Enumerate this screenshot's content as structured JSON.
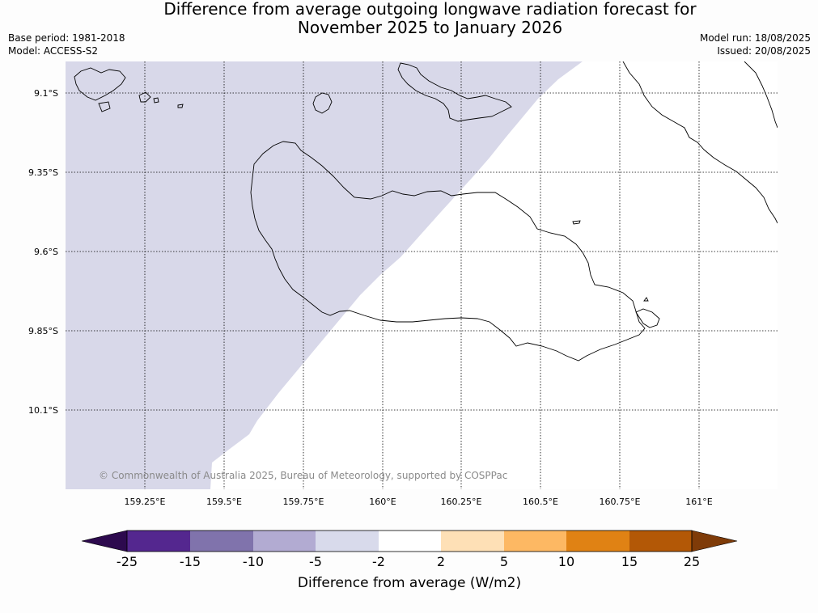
{
  "title": "Difference from average outgoing longwave radiation forecast for\nNovember 2025 to January 2026",
  "meta": {
    "base_period": "Base period: 1981-2018",
    "model": "Model: ACCESS-S2",
    "model_run": "Model run: 18/08/2025",
    "issued": "Issued: 20/08/2025"
  },
  "map": {
    "lat_ticks": [
      "9.1°S",
      "9.35°S",
      "9.6°S",
      "9.85°S",
      "10.1°S"
    ],
    "lon_ticks": [
      "159.25°E",
      "159.5°E",
      "159.75°E",
      "160°E",
      "160.25°E",
      "160.5°E",
      "160.75°E",
      "161°E"
    ],
    "credit": "© Commonwealth of Australia 2025, Bureau of Meteorology, supported by COSPPac",
    "anomaly_fill_color": "#d8d8e9",
    "anomaly_fill_value_range": "-5 to -2"
  },
  "colorbar": {
    "title": "Difference from average (W/m2)",
    "labels": [
      "-25",
      "-15",
      "-10",
      "-5",
      "-2",
      "2",
      "5",
      "10",
      "15",
      "25"
    ],
    "colors": [
      "#2d0a4e",
      "#54278f",
      "#8073ac",
      "#b2abd2",
      "#d8daeb",
      "#ffffff",
      "#fee0b6",
      "#fdb863",
      "#e08214",
      "#b35806",
      "#7f3b08"
    ]
  }
}
